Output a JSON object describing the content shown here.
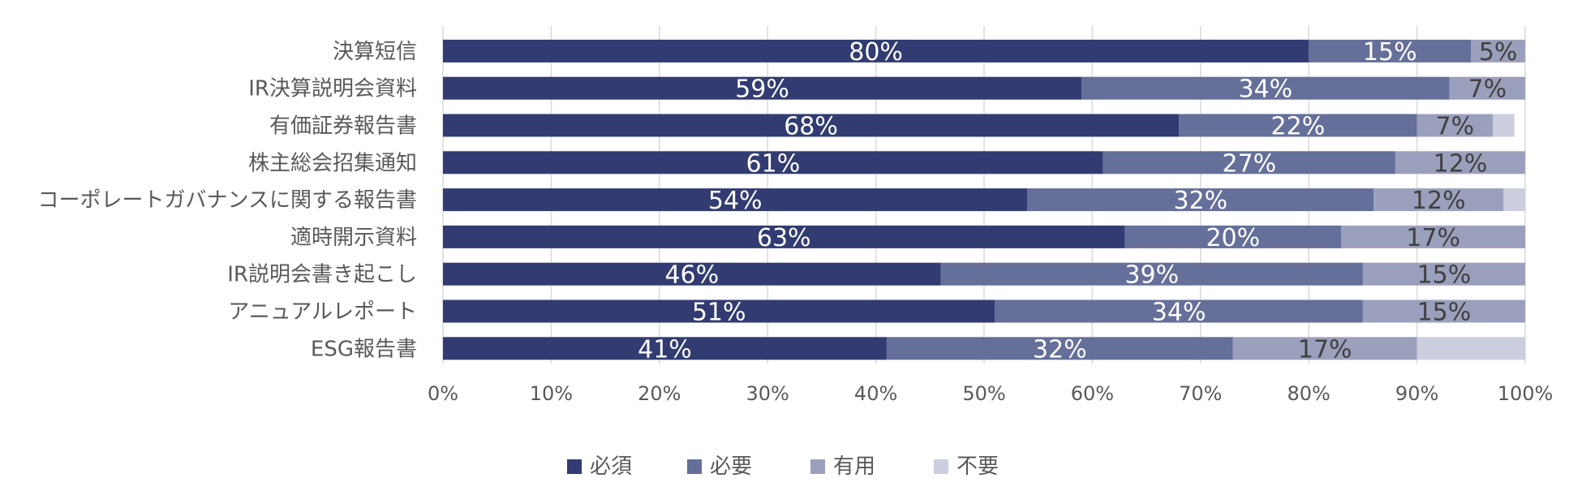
{
  "chart_data": {
    "type": "bar",
    "orientation": "horizontal",
    "stacked": true,
    "categories": [
      "決算短信",
      "IR決算説明会資料",
      "有価証券報告書",
      "株主総会招集通知",
      "コーポレートガバナンスに関する報告書",
      "適時開示資料",
      "IR説明会書き起こし",
      "アニュアルレポート",
      "ESG報告書"
    ],
    "series": [
      {
        "name": "必須",
        "color": "#323c72",
        "values": [
          80,
          59,
          68,
          61,
          54,
          63,
          46,
          51,
          41
        ]
      },
      {
        "name": "必要",
        "color": "#656f99",
        "values": [
          15,
          34,
          22,
          27,
          32,
          20,
          39,
          34,
          32
        ]
      },
      {
        "name": "有用",
        "color": "#9aa0bc",
        "values": [
          5,
          7,
          7,
          12,
          12,
          17,
          15,
          15,
          17
        ]
      },
      {
        "name": "不要",
        "color": "#cbcedd",
        "values": [
          0,
          0,
          2,
          0,
          2,
          0,
          0,
          0,
          10
        ]
      }
    ],
    "data_labels": [
      [
        "80%",
        "59%",
        "68%",
        "61%",
        "54%",
        "63%",
        "46%",
        "51%",
        "41%"
      ],
      [
        "15%",
        "34%",
        "22%",
        "27%",
        "32%",
        "20%",
        "39%",
        "34%",
        "32%"
      ],
      [
        "5%",
        "7%",
        "7%",
        "12%",
        "12%",
        "17%",
        "15%",
        "15%",
        "17%"
      ],
      [
        "",
        "",
        "",
        "",
        "",
        "",
        "",
        "",
        ""
      ]
    ],
    "x_ticks": [
      "0%",
      "10%",
      "20%",
      "30%",
      "40%",
      "50%",
      "60%",
      "70%",
      "80%",
      "90%",
      "100%"
    ],
    "xlim": [
      0,
      100
    ],
    "grid": true,
    "legend_position": "bottom",
    "title": "",
    "xlabel": "",
    "ylabel": ""
  }
}
